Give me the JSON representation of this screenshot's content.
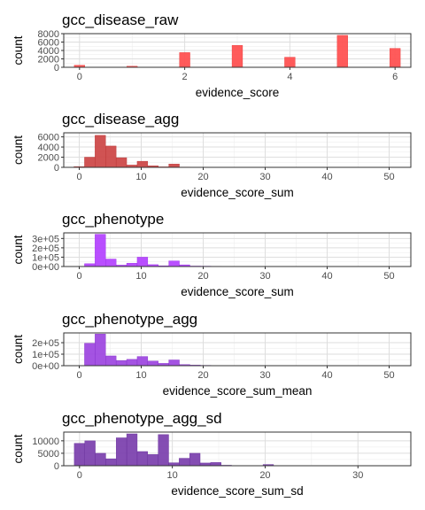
{
  "chart_data": [
    {
      "type": "bar",
      "title": "gcc_disease_raw",
      "xlabel": "evidence_score",
      "ylabel": "count",
      "fill": "#FF4D4D",
      "stroke": "#E63939",
      "xlim": [
        -0.3,
        6.3
      ],
      "ylim": [
        0,
        8000
      ],
      "xticks": [
        0,
        2,
        4,
        6
      ],
      "xtick_labels": [
        "0",
        "2",
        "4",
        "6"
      ],
      "yticks": [
        0,
        2000,
        4000,
        6000,
        8000
      ],
      "ytick_labels": [
        "0",
        "2000",
        "4000",
        "6000",
        "8000"
      ],
      "grid": true,
      "bin_width": 0.2,
      "x": [
        0,
        1,
        2,
        3,
        4,
        5,
        6
      ],
      "values": [
        500,
        250,
        3500,
        5200,
        2400,
        7600,
        4500
      ]
    },
    {
      "type": "bar",
      "title": "gcc_disease_agg",
      "xlabel": "evidence_score_sum",
      "ylabel": "count",
      "fill": "#CC4444",
      "stroke": "#B83232",
      "xlim": [
        -2.5,
        53.5
      ],
      "ylim": [
        0,
        6800
      ],
      "xticks": [
        0,
        10,
        20,
        30,
        40,
        50
      ],
      "xtick_labels": [
        "0",
        "10",
        "20",
        "30",
        "40",
        "50"
      ],
      "yticks": [
        0,
        2000,
        4000,
        6000
      ],
      "ytick_labels": [
        "0",
        "2000",
        "4000",
        "6000"
      ],
      "grid": true,
      "bin_width": 1.7,
      "x": [
        0,
        1.7,
        3.4,
        5.1,
        6.8,
        8.5,
        10.2,
        11.9,
        13.6,
        15.3,
        17,
        18.7,
        20.4,
        22.1,
        23.8,
        25.5,
        27.2
      ],
      "values": [
        150,
        2000,
        6300,
        4200,
        1900,
        450,
        1200,
        300,
        100,
        650,
        60,
        30,
        20,
        15,
        10,
        5,
        3
      ]
    },
    {
      "type": "bar",
      "title": "gcc_phenotype",
      "xlabel": "evidence_score_sum",
      "ylabel": "count",
      "fill": "#B340FF",
      "stroke": "#9A2CE6",
      "xlim": [
        -2.5,
        53.5
      ],
      "ylim": [
        0,
        360000
      ],
      "xticks": [
        0,
        10,
        20,
        30,
        40,
        50
      ],
      "xtick_labels": [
        "0",
        "10",
        "20",
        "30",
        "40",
        "50"
      ],
      "yticks": [
        0,
        100000,
        200000,
        300000
      ],
      "ytick_labels": [
        "0e+00",
        "1e+05",
        "2e+05",
        "3e+05"
      ],
      "grid": true,
      "bin_width": 1.7,
      "x": [
        1.7,
        3.4,
        5.1,
        6.8,
        8.5,
        10.2,
        11.9,
        13.6,
        15.3,
        17,
        18.7,
        20.4,
        22.1,
        23.8,
        25.5,
        27.2,
        28.9
      ],
      "values": [
        30000,
        345000,
        80000,
        15000,
        35000,
        100000,
        20000,
        8000,
        60000,
        18000,
        5000,
        4000,
        3000,
        2000,
        1500,
        1000,
        500
      ]
    },
    {
      "type": "bar",
      "title": "gcc_phenotype_agg",
      "xlabel": "evidence_score_sum_mean",
      "ylabel": "count",
      "fill": "#9C44E0",
      "stroke": "#8430C9",
      "xlim": [
        -2.5,
        53.5
      ],
      "ylim": [
        0,
        285000
      ],
      "xticks": [
        0,
        10,
        20,
        30,
        40,
        50
      ],
      "xtick_labels": [
        "0",
        "10",
        "20",
        "30",
        "40",
        "50"
      ],
      "yticks": [
        0,
        100000,
        200000
      ],
      "ytick_labels": [
        "0e+00",
        "1e+05",
        "2e+05"
      ],
      "grid": true,
      "bin_width": 1.7,
      "x": [
        1.7,
        3.4,
        5.1,
        6.8,
        8.5,
        10.2,
        11.9,
        13.6,
        15.3,
        17,
        18.7,
        20.4,
        22.1,
        23.8,
        25.5
      ],
      "values": [
        195000,
        275000,
        85000,
        45000,
        55000,
        80000,
        40000,
        20000,
        50000,
        10000,
        5000,
        3000,
        2000,
        2000,
        1500
      ]
    },
    {
      "type": "bar",
      "title": "gcc_phenotype_agg_sd",
      "xlabel": "evidence_score_sum_sd",
      "ylabel": "count",
      "fill": "#7A3EAD",
      "stroke": "#662E99",
      "xlim": [
        -1.7,
        35.7
      ],
      "ylim": [
        0,
        13500
      ],
      "xticks": [
        0,
        10,
        20,
        30
      ],
      "xtick_labels": [
        "0",
        "10",
        "20",
        "30"
      ],
      "yticks": [
        0,
        5000,
        10000
      ],
      "ytick_labels": [
        "0",
        "5000",
        "10000"
      ],
      "grid": true,
      "bin_width": 1.13,
      "x": [
        0,
        1.13,
        2.26,
        3.39,
        4.52,
        5.65,
        6.78,
        7.91,
        9.04,
        10.17,
        11.3,
        12.43,
        13.56,
        14.69,
        15.82,
        16.95,
        18.08,
        19.21,
        20.34,
        21.47
      ],
      "values": [
        9000,
        10000,
        5000,
        2800,
        11200,
        12800,
        5700,
        4500,
        12500,
        1200,
        3000,
        5000,
        1100,
        1300,
        200,
        100,
        50,
        30,
        500,
        20
      ]
    }
  ]
}
